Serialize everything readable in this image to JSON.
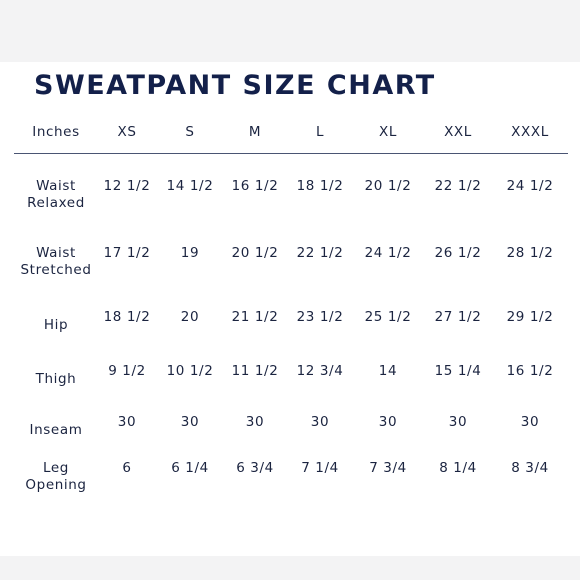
{
  "title": "SWEATPANT SIZE CHART",
  "columns": [
    "Inches",
    "XS",
    "S",
    "M",
    "L",
    "XL",
    "XXL",
    "XXXL"
  ],
  "rows": [
    {
      "label": [
        "Waist",
        "Relaxed"
      ],
      "values": [
        "12 1/2",
        "14 1/2",
        "16 1/2",
        "18 1/2",
        "20 1/2",
        "22 1/2",
        "24 1/2"
      ]
    },
    {
      "label": [
        "Waist",
        "Stretched"
      ],
      "values": [
        "17 1/2",
        "19",
        "20 1/2",
        "22 1/2",
        "24 1/2",
        "26 1/2",
        "28 1/2"
      ]
    },
    {
      "label": [
        "Hip"
      ],
      "values": [
        "18 1/2",
        "20",
        "21 1/2",
        "23 1/2",
        "25 1/2",
        "27 1/2",
        "29 1/2"
      ]
    },
    {
      "label": [
        "Thigh"
      ],
      "values": [
        "9 1/2",
        "10 1/2",
        "11 1/2",
        "12 3/4",
        "14",
        "15 1/4",
        "16 1/2"
      ]
    },
    {
      "label": [
        "Inseam"
      ],
      "values": [
        "30",
        "30",
        "30",
        "30",
        "30",
        "30",
        "30"
      ]
    },
    {
      "label": [
        "Leg",
        "Opening"
      ],
      "values": [
        "6",
        "6 1/4",
        "6 3/4",
        "7 1/4",
        "7 3/4",
        "8 1/4",
        "8 3/4"
      ]
    }
  ]
}
